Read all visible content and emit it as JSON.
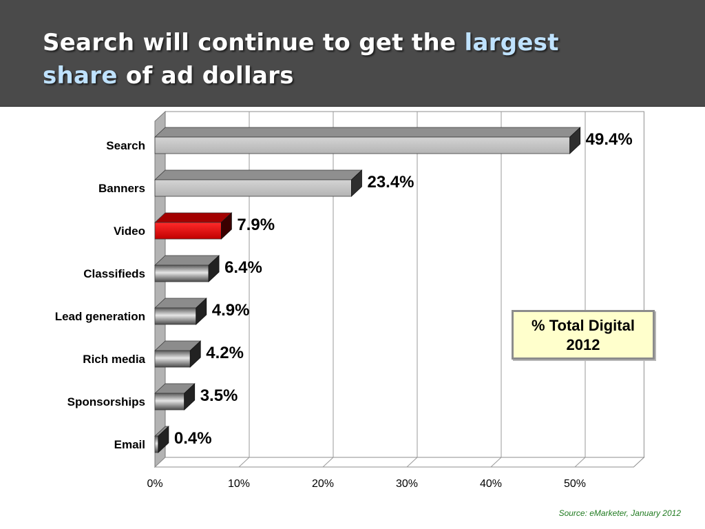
{
  "title": {
    "part1": "Search will continue to get the ",
    "highlight1": "largest",
    "highlight2": "share",
    "part2": " of ad dollars"
  },
  "legend": {
    "line1": "% Total Digital",
    "line2": "2012"
  },
  "source": "Source: eMarketer, January 2012",
  "colors": {
    "header_bg": "#4a4a4a",
    "title_text": "#ffffff",
    "title_highlight": "#bfe2ff",
    "bar_light": "#c0c0c0",
    "bar_metal": "#8a8a8a",
    "bar_highlight": "#e00000",
    "source_text": "#1f7a1f",
    "legend_bg": "#ffffcc"
  },
  "chart_data": {
    "type": "bar",
    "orientation": "horizontal",
    "style": "3d",
    "categories": [
      "Search",
      "Banners",
      "Video",
      "Classifieds",
      "Lead generation",
      "Rich media",
      "Sponsorships",
      "Email"
    ],
    "values": [
      49.4,
      23.4,
      7.9,
      6.4,
      4.9,
      4.2,
      3.5,
      0.4
    ],
    "data_labels": [
      "49.4%",
      "23.4%",
      "7.9%",
      "6.4%",
      "4.9%",
      "4.2%",
      "3.5%",
      "0.4%"
    ],
    "bar_styles": [
      "light",
      "light",
      "highlight",
      "metal",
      "metal",
      "metal",
      "metal",
      "metal"
    ],
    "xticks": [
      0,
      10,
      20,
      30,
      40,
      50
    ],
    "xtick_labels": [
      "0%",
      "10%",
      "20%",
      "30%",
      "40%",
      "50%"
    ],
    "xlim": [
      0,
      57
    ],
    "grid": true,
    "legend_position": "right"
  }
}
